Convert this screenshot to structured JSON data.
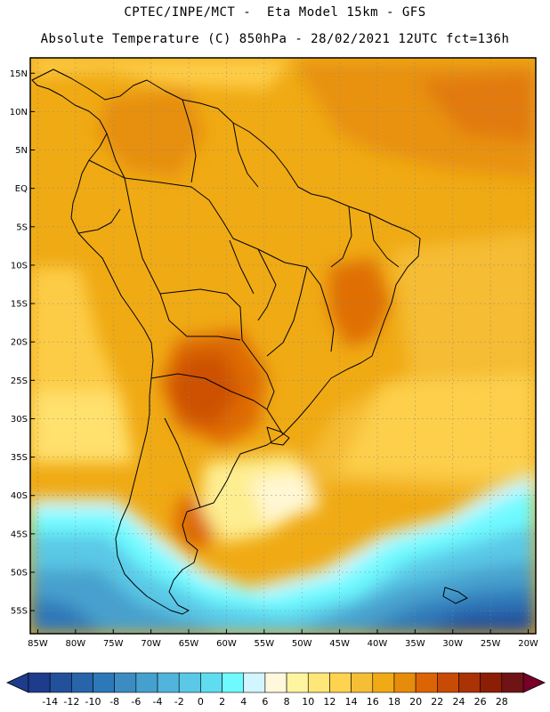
{
  "header": {
    "line1": "CPTEC/INPE/MCT -  Eta Model 15km - GFS",
    "line2": "Absolute Temperature (C) 850hPa - 28/02/2021 12UTC fct=136h"
  },
  "map": {
    "lon_range": [
      -86,
      -19
    ],
    "lat_range": [
      -58,
      17
    ],
    "lat_ticks": [
      {
        "value": 15,
        "label": "15N"
      },
      {
        "value": 10,
        "label": "10N"
      },
      {
        "value": 5,
        "label": "5N"
      },
      {
        "value": 0,
        "label": "EQ"
      },
      {
        "value": -5,
        "label": "5S"
      },
      {
        "value": -10,
        "label": "10S"
      },
      {
        "value": -15,
        "label": "15S"
      },
      {
        "value": -20,
        "label": "20S"
      },
      {
        "value": -25,
        "label": "25S"
      },
      {
        "value": -30,
        "label": "30S"
      },
      {
        "value": -35,
        "label": "35S"
      },
      {
        "value": -40,
        "label": "40S"
      },
      {
        "value": -45,
        "label": "45S"
      },
      {
        "value": -50,
        "label": "50S"
      },
      {
        "value": -55,
        "label": "55S"
      }
    ],
    "lon_ticks": [
      {
        "value": -85,
        "label": "85W"
      },
      {
        "value": -80,
        "label": "80W"
      },
      {
        "value": -75,
        "label": "75W"
      },
      {
        "value": -70,
        "label": "70W"
      },
      {
        "value": -65,
        "label": "65W"
      },
      {
        "value": -60,
        "label": "60W"
      },
      {
        "value": -55,
        "label": "55W"
      },
      {
        "value": -50,
        "label": "50W"
      },
      {
        "value": -45,
        "label": "45W"
      },
      {
        "value": -40,
        "label": "40W"
      },
      {
        "value": -35,
        "label": "35W"
      },
      {
        "value": -30,
        "label": "30W"
      },
      {
        "value": -25,
        "label": "25W"
      },
      {
        "value": -20,
        "label": "20W"
      }
    ]
  },
  "colorbar": {
    "labels": [
      "-14",
      "-12",
      "-10",
      "-8",
      "-6",
      "-4",
      "-2",
      "0",
      "2",
      "4",
      "6",
      "8",
      "10",
      "12",
      "14",
      "16",
      "18",
      "20",
      "22",
      "24",
      "26",
      "28"
    ],
    "colors": [
      "#1e3c8c",
      "#23509b",
      "#2864aa",
      "#2d78b9",
      "#3c8cc3",
      "#46a0cd",
      "#50b4dc",
      "#5ac8e6",
      "#5fdcf0",
      "#6efaff",
      "#d2f5ff",
      "#fff8dc",
      "#fff5a0",
      "#ffe678",
      "#ffd250",
      "#f5be37",
      "#f0aa14",
      "#e68c0a",
      "#dc6405",
      "#c84b05",
      "#aa3205",
      "#8c1e05",
      "#6e1414"
    ],
    "under_color": "#1e3c8c",
    "over_color": "#780028"
  }
}
